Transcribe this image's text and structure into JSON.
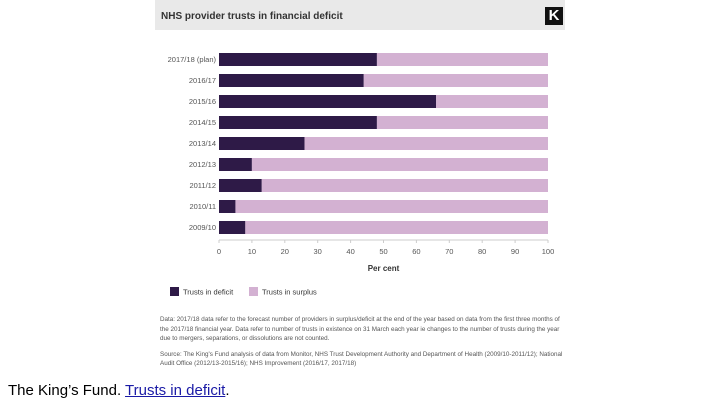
{
  "figure": {
    "title": "NHS provider trusts in financial deficit",
    "logo_letter": "K",
    "notes": "Data: 2017/18 data refer to the forecast number of providers in surplus/deficit at the end of the year based on data from the first three months of the 2017/18 financial year. Data refer to number of trusts in existence on 31 March each year ie changes to the number of trusts during the year due to mergers, separations, or dissolutions are not counted.",
    "source": "Source: The King's Fund analysis of data from Monitor, NHS Trust Development Authority and Department of Health (2009/10-2011/12); National Audit Office (2012/13-2015/16); NHS Improvement (2016/17, 2017/18)"
  },
  "caption": {
    "prefix": "The King’s Fund. ",
    "link_text": "Trusts in deficit",
    "suffix": "."
  },
  "colors": {
    "deficit": "#2e1a47",
    "surplus": "#d3b1d2",
    "axis": "#cccccc",
    "text": "#555555"
  },
  "chart_data": {
    "type": "bar",
    "orientation": "horizontal",
    "stacked": true,
    "categories": [
      "2017/18 (plan)",
      "2016/17",
      "2015/16",
      "2014/15",
      "2013/14",
      "2012/13",
      "2011/12",
      "2010/11",
      "2009/10"
    ],
    "series": [
      {
        "name": "Trusts in deficit",
        "values": [
          48,
          44,
          66,
          48,
          26,
          10,
          13,
          5,
          8
        ]
      },
      {
        "name": "Trusts in surplus",
        "values": [
          52,
          56,
          34,
          52,
          74,
          90,
          87,
          95,
          92
        ]
      }
    ],
    "xticks": [
      0,
      10,
      20,
      30,
      40,
      50,
      60,
      70,
      80,
      90,
      100
    ],
    "xlim": [
      0,
      100
    ],
    "xlabel": "Per cent",
    "ylabel": "",
    "grid": false,
    "legend_position": "bottom-left"
  }
}
